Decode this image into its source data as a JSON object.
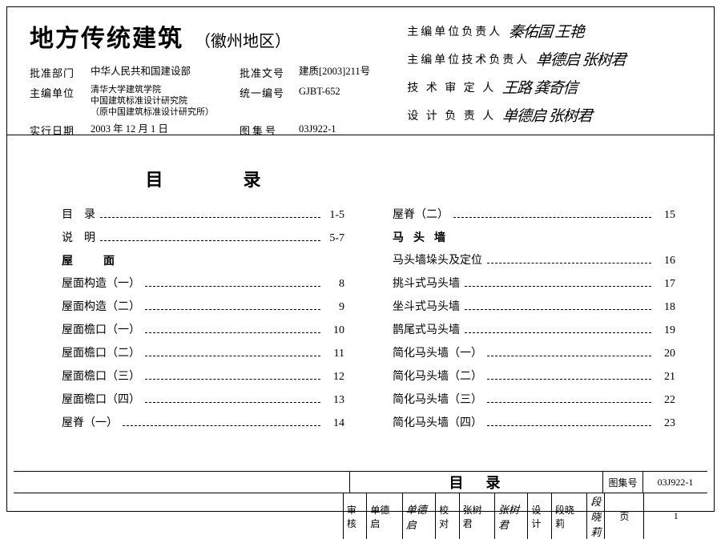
{
  "colors": {
    "border": "#000000",
    "bg": "#ffffff",
    "text": "#000000"
  },
  "title": {
    "main": "地方传统建筑",
    "sub": "（徽州地区）"
  },
  "meta": {
    "approve_dept_label": "批准部门",
    "approve_dept": "中华人民共和国建设部",
    "approve_doc_label": "批准文号",
    "approve_doc": "建质[2003]211号",
    "editor_label": "主编单位",
    "editor": "清华大学建筑学院\n中国建筑标准设计研究院\n（原中国建筑标准设计研究所）",
    "unified_code_label": "统一编号",
    "unified_code": "GJBT-652",
    "effective_label": "实行日期",
    "effective": "2003 年 12 月 1 日",
    "atlas_code_label": "图集号",
    "atlas_code": "03J922-1"
  },
  "signatures": [
    {
      "label": "主编单位负责人",
      "names": "秦佑国 王艳"
    },
    {
      "label": "主编单位技术负责人",
      "names": "单德启 张树君"
    },
    {
      "label": "技 术 审 定 人",
      "names": "王路 龚奇信"
    },
    {
      "label": "设 计 负 责 人",
      "names": "单德启 张树君"
    }
  ],
  "toc": {
    "heading": "目录",
    "left": [
      {
        "label": "目　录",
        "page": "1-5",
        "indent": true
      },
      {
        "label": "说　明",
        "page": "5-7",
        "indent": true
      },
      {
        "section": "屋　面"
      },
      {
        "label": "屋面构造（一）",
        "page": "8"
      },
      {
        "label": "屋面构造（二）",
        "page": "9"
      },
      {
        "label": "屋面檐口（一）",
        "page": "10"
      },
      {
        "label": "屋面檐口（二）",
        "page": "11"
      },
      {
        "label": "屋面檐口（三）",
        "page": "12"
      },
      {
        "label": "屋面檐口（四）",
        "page": "13"
      },
      {
        "label": "屋脊（一）",
        "page": "14"
      }
    ],
    "right": [
      {
        "label": "屋脊（二）",
        "page": "15"
      },
      {
        "section": "马头墙"
      },
      {
        "label": "马头墙垛头及定位",
        "page": "16"
      },
      {
        "label": "挑斗式马头墙",
        "page": "17"
      },
      {
        "label": "坐斗式马头墙",
        "page": "18"
      },
      {
        "label": "鹊尾式马头墙",
        "page": "19"
      },
      {
        "label": "简化马头墙（一）",
        "page": "20"
      },
      {
        "label": "简化马头墙（二）",
        "page": "21"
      },
      {
        "label": "简化马头墙（三）",
        "page": "22"
      },
      {
        "label": "简化马头墙（四）",
        "page": "23"
      }
    ]
  },
  "footer": {
    "title": "目录",
    "atlas_label": "图集号",
    "atlas_code": "03J922-1",
    "review_label": "审核",
    "review_name": "单德启",
    "review_sig": "单德启",
    "proof_label": "校对",
    "proof_name": "张树君",
    "proof_sig": "张树君",
    "design_label": "设计",
    "design_name": "段晓莉",
    "design_sig": "段晓莉",
    "page_label": "页",
    "page_num": "1"
  }
}
